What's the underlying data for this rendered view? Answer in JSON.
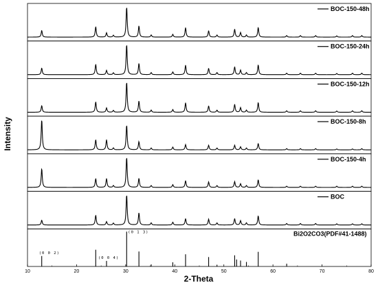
{
  "chart_data": {
    "type": "line",
    "xlabel": "2-Theta",
    "ylabel": "Intensity",
    "xlim": [
      10,
      80
    ],
    "xticks": [
      "10",
      "20",
      "30",
      "40",
      "50",
      "60",
      "70",
      "80"
    ],
    "line_color": "#000000",
    "series": [
      {
        "name": "BOC-150-48h",
        "peaks": [
          [
            12.9,
            0.22
          ],
          [
            23.9,
            0.34
          ],
          [
            26.1,
            0.14
          ],
          [
            27.5,
            0.06
          ],
          [
            30.2,
            1.0
          ],
          [
            32.7,
            0.37
          ],
          [
            35.2,
            0.07
          ],
          [
            39.6,
            0.09
          ],
          [
            42.2,
            0.31
          ],
          [
            46.9,
            0.21
          ],
          [
            48.6,
            0.07
          ],
          [
            52.2,
            0.26
          ],
          [
            53.4,
            0.15
          ],
          [
            54.6,
            0.07
          ],
          [
            57.0,
            0.32
          ],
          [
            62.8,
            0.05
          ],
          [
            65.6,
            0.05
          ],
          [
            68.7,
            0.05
          ],
          [
            73.0,
            0.04
          ],
          [
            76.2,
            0.05
          ],
          [
            78.1,
            0.05
          ]
        ]
      },
      {
        "name": "BOC-150-24h",
        "peaks": [
          [
            12.9,
            0.22
          ],
          [
            23.9,
            0.34
          ],
          [
            26.1,
            0.14
          ],
          [
            27.5,
            0.06
          ],
          [
            30.2,
            1.0
          ],
          [
            32.7,
            0.37
          ],
          [
            35.2,
            0.07
          ],
          [
            39.6,
            0.09
          ],
          [
            42.2,
            0.31
          ],
          [
            46.9,
            0.21
          ],
          [
            48.6,
            0.07
          ],
          [
            52.2,
            0.26
          ],
          [
            53.4,
            0.15
          ],
          [
            54.6,
            0.07
          ],
          [
            57.0,
            0.32
          ],
          [
            62.8,
            0.05
          ],
          [
            65.6,
            0.05
          ],
          [
            68.7,
            0.05
          ],
          [
            73.0,
            0.04
          ],
          [
            76.2,
            0.05
          ],
          [
            78.1,
            0.05
          ]
        ]
      },
      {
        "name": "BOC-150-12h",
        "peaks": [
          [
            12.9,
            0.22
          ],
          [
            23.9,
            0.34
          ],
          [
            26.1,
            0.14
          ],
          [
            27.5,
            0.06
          ],
          [
            30.2,
            1.0
          ],
          [
            32.7,
            0.37
          ],
          [
            35.2,
            0.07
          ],
          [
            39.6,
            0.09
          ],
          [
            42.2,
            0.31
          ],
          [
            46.9,
            0.21
          ],
          [
            48.6,
            0.07
          ],
          [
            52.2,
            0.26
          ],
          [
            53.4,
            0.15
          ],
          [
            54.6,
            0.07
          ],
          [
            57.0,
            0.32
          ],
          [
            62.8,
            0.05
          ],
          [
            65.6,
            0.05
          ],
          [
            68.7,
            0.05
          ],
          [
            73.0,
            0.04
          ],
          [
            76.2,
            0.05
          ],
          [
            78.1,
            0.05
          ]
        ]
      },
      {
        "name": "BOC-150-8h",
        "peaks": [
          [
            12.9,
            1.0
          ],
          [
            23.9,
            0.33
          ],
          [
            26.1,
            0.33
          ],
          [
            27.5,
            0.06
          ],
          [
            30.2,
            0.82
          ],
          [
            32.7,
            0.27
          ],
          [
            35.2,
            0.06
          ],
          [
            39.6,
            0.09
          ],
          [
            42.2,
            0.17
          ],
          [
            46.9,
            0.15
          ],
          [
            48.6,
            0.06
          ],
          [
            52.2,
            0.15
          ],
          [
            53.4,
            0.1
          ],
          [
            54.6,
            0.06
          ],
          [
            57.0,
            0.21
          ],
          [
            62.8,
            0.04
          ],
          [
            65.6,
            0.04
          ],
          [
            68.7,
            0.04
          ],
          [
            73.0,
            0.03
          ],
          [
            76.2,
            0.03
          ],
          [
            78.1,
            0.04
          ]
        ]
      },
      {
        "name": "BOC-150-4h",
        "peaks": [
          [
            12.9,
            0.62
          ],
          [
            23.9,
            0.29
          ],
          [
            26.1,
            0.29
          ],
          [
            27.5,
            0.06
          ],
          [
            30.2,
            1.0
          ],
          [
            32.7,
            0.3
          ],
          [
            35.2,
            0.06
          ],
          [
            39.6,
            0.09
          ],
          [
            42.2,
            0.22
          ],
          [
            46.9,
            0.18
          ],
          [
            48.6,
            0.06
          ],
          [
            52.2,
            0.19
          ],
          [
            53.4,
            0.12
          ],
          [
            54.6,
            0.06
          ],
          [
            57.0,
            0.25
          ],
          [
            62.8,
            0.04
          ],
          [
            65.6,
            0.04
          ],
          [
            68.7,
            0.04
          ],
          [
            73.0,
            0.04
          ],
          [
            76.2,
            0.04
          ],
          [
            78.1,
            0.04
          ]
        ]
      },
      {
        "name": "BOC",
        "peaks": [
          [
            12.9,
            0.16
          ],
          [
            23.9,
            0.32
          ],
          [
            26.1,
            0.11
          ],
          [
            27.5,
            0.06
          ],
          [
            30.2,
            1.0
          ],
          [
            32.7,
            0.4
          ],
          [
            35.2,
            0.07
          ],
          [
            39.6,
            0.09
          ],
          [
            42.2,
            0.21
          ],
          [
            46.9,
            0.19
          ],
          [
            48.6,
            0.07
          ],
          [
            52.2,
            0.21
          ],
          [
            53.4,
            0.14
          ],
          [
            54.6,
            0.07
          ],
          [
            57.0,
            0.3
          ],
          [
            62.8,
            0.05
          ],
          [
            65.6,
            0.05
          ],
          [
            68.7,
            0.05
          ],
          [
            73.0,
            0.04
          ],
          [
            76.2,
            0.04
          ],
          [
            78.1,
            0.04
          ]
        ]
      }
    ],
    "reference": {
      "name": "Bi2O2CO3(PDF#41-1488)",
      "sticks": [
        [
          12.9,
          0.3
        ],
        [
          23.9,
          0.48
        ],
        [
          26.1,
          0.16
        ],
        [
          30.2,
          1.0
        ],
        [
          32.7,
          0.43
        ],
        [
          35.2,
          0.06
        ],
        [
          39.6,
          0.12
        ],
        [
          42.2,
          0.35
        ],
        [
          46.9,
          0.27
        ],
        [
          48.6,
          0.05
        ],
        [
          52.2,
          0.32
        ],
        [
          52.6,
          0.2
        ],
        [
          53.4,
          0.17
        ],
        [
          54.6,
          0.13
        ],
        [
          57.0,
          0.42
        ],
        [
          62.8,
          0.08
        ]
      ],
      "annotations": [
        {
          "text": "(0 0 2)",
          "x": 12.9
        },
        {
          "text": "(0 0 4)",
          "x": 26.1
        },
        {
          "text": "(0 1 3)",
          "x": 30.2
        }
      ]
    }
  }
}
